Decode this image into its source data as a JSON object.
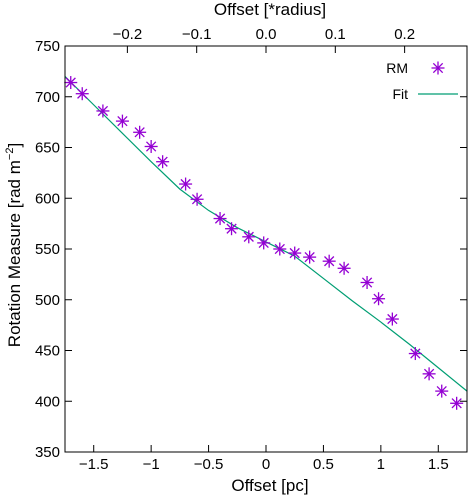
{
  "chart_data": {
    "type": "scatter",
    "xlabel": "Offset [pc]",
    "x2label": "Offset [*radius]",
    "ylabel": "Rotation Measure [rad m",
    "ylabel_sup": "−2",
    "ylabel_close": "]",
    "xlim": [
      -1.75,
      1.75
    ],
    "ylim": [
      350,
      750
    ],
    "x2lim": [
      -0.29,
      0.29
    ],
    "xticks": [
      -1.5,
      -1,
      -0.5,
      0,
      0.5,
      1,
      1.5
    ],
    "xtick_labels": [
      "−1.5",
      "−1",
      "−0.5",
      "0",
      "0.5",
      "1",
      "1.5"
    ],
    "x2ticks": [
      -0.2,
      -0.1,
      0.0,
      0.1,
      0.2
    ],
    "x2tick_labels": [
      "−0.2",
      "−0.1",
      "0.0",
      "0.1",
      "0.2"
    ],
    "yticks": [
      350,
      400,
      450,
      500,
      550,
      600,
      650,
      700,
      750
    ],
    "ytick_labels": [
      "350",
      "400",
      "450",
      "500",
      "550",
      "600",
      "650",
      "700",
      "750"
    ],
    "legend_position": "top-right",
    "series": [
      {
        "name": "RM",
        "kind": "points",
        "marker": "asterisk",
        "color": "#9400d3",
        "points": [
          [
            -1.7,
            714
          ],
          [
            -1.6,
            703
          ],
          [
            -1.42,
            686
          ],
          [
            -1.25,
            676
          ],
          [
            -1.1,
            665
          ],
          [
            -1.0,
            651
          ],
          [
            -0.9,
            636
          ],
          [
            -0.7,
            614
          ],
          [
            -0.6,
            599
          ],
          [
            -0.4,
            580
          ],
          [
            -0.3,
            570
          ],
          [
            -0.15,
            562
          ],
          [
            -0.02,
            556
          ],
          [
            0.12,
            550
          ],
          [
            0.25,
            546
          ],
          [
            0.38,
            542
          ],
          [
            0.55,
            538
          ],
          [
            0.68,
            531
          ],
          [
            0.88,
            517
          ],
          [
            0.98,
            501
          ],
          [
            1.1,
            481
          ],
          [
            1.3,
            447
          ],
          [
            1.42,
            427
          ],
          [
            1.53,
            410
          ],
          [
            1.66,
            398
          ]
        ]
      },
      {
        "name": "Fit",
        "kind": "line",
        "color": "#009e73",
        "points": [
          [
            -1.75,
            720
          ],
          [
            -1.5,
            692
          ],
          [
            -1.25,
            664
          ],
          [
            -1.0,
            636
          ],
          [
            -0.75,
            609
          ],
          [
            -0.5,
            588
          ],
          [
            -0.25,
            571
          ],
          [
            0.0,
            557
          ],
          [
            0.25,
            543
          ],
          [
            0.5,
            521
          ],
          [
            0.75,
            499
          ],
          [
            1.0,
            478
          ],
          [
            1.25,
            456
          ],
          [
            1.5,
            433
          ],
          [
            1.75,
            410
          ]
        ]
      }
    ]
  }
}
